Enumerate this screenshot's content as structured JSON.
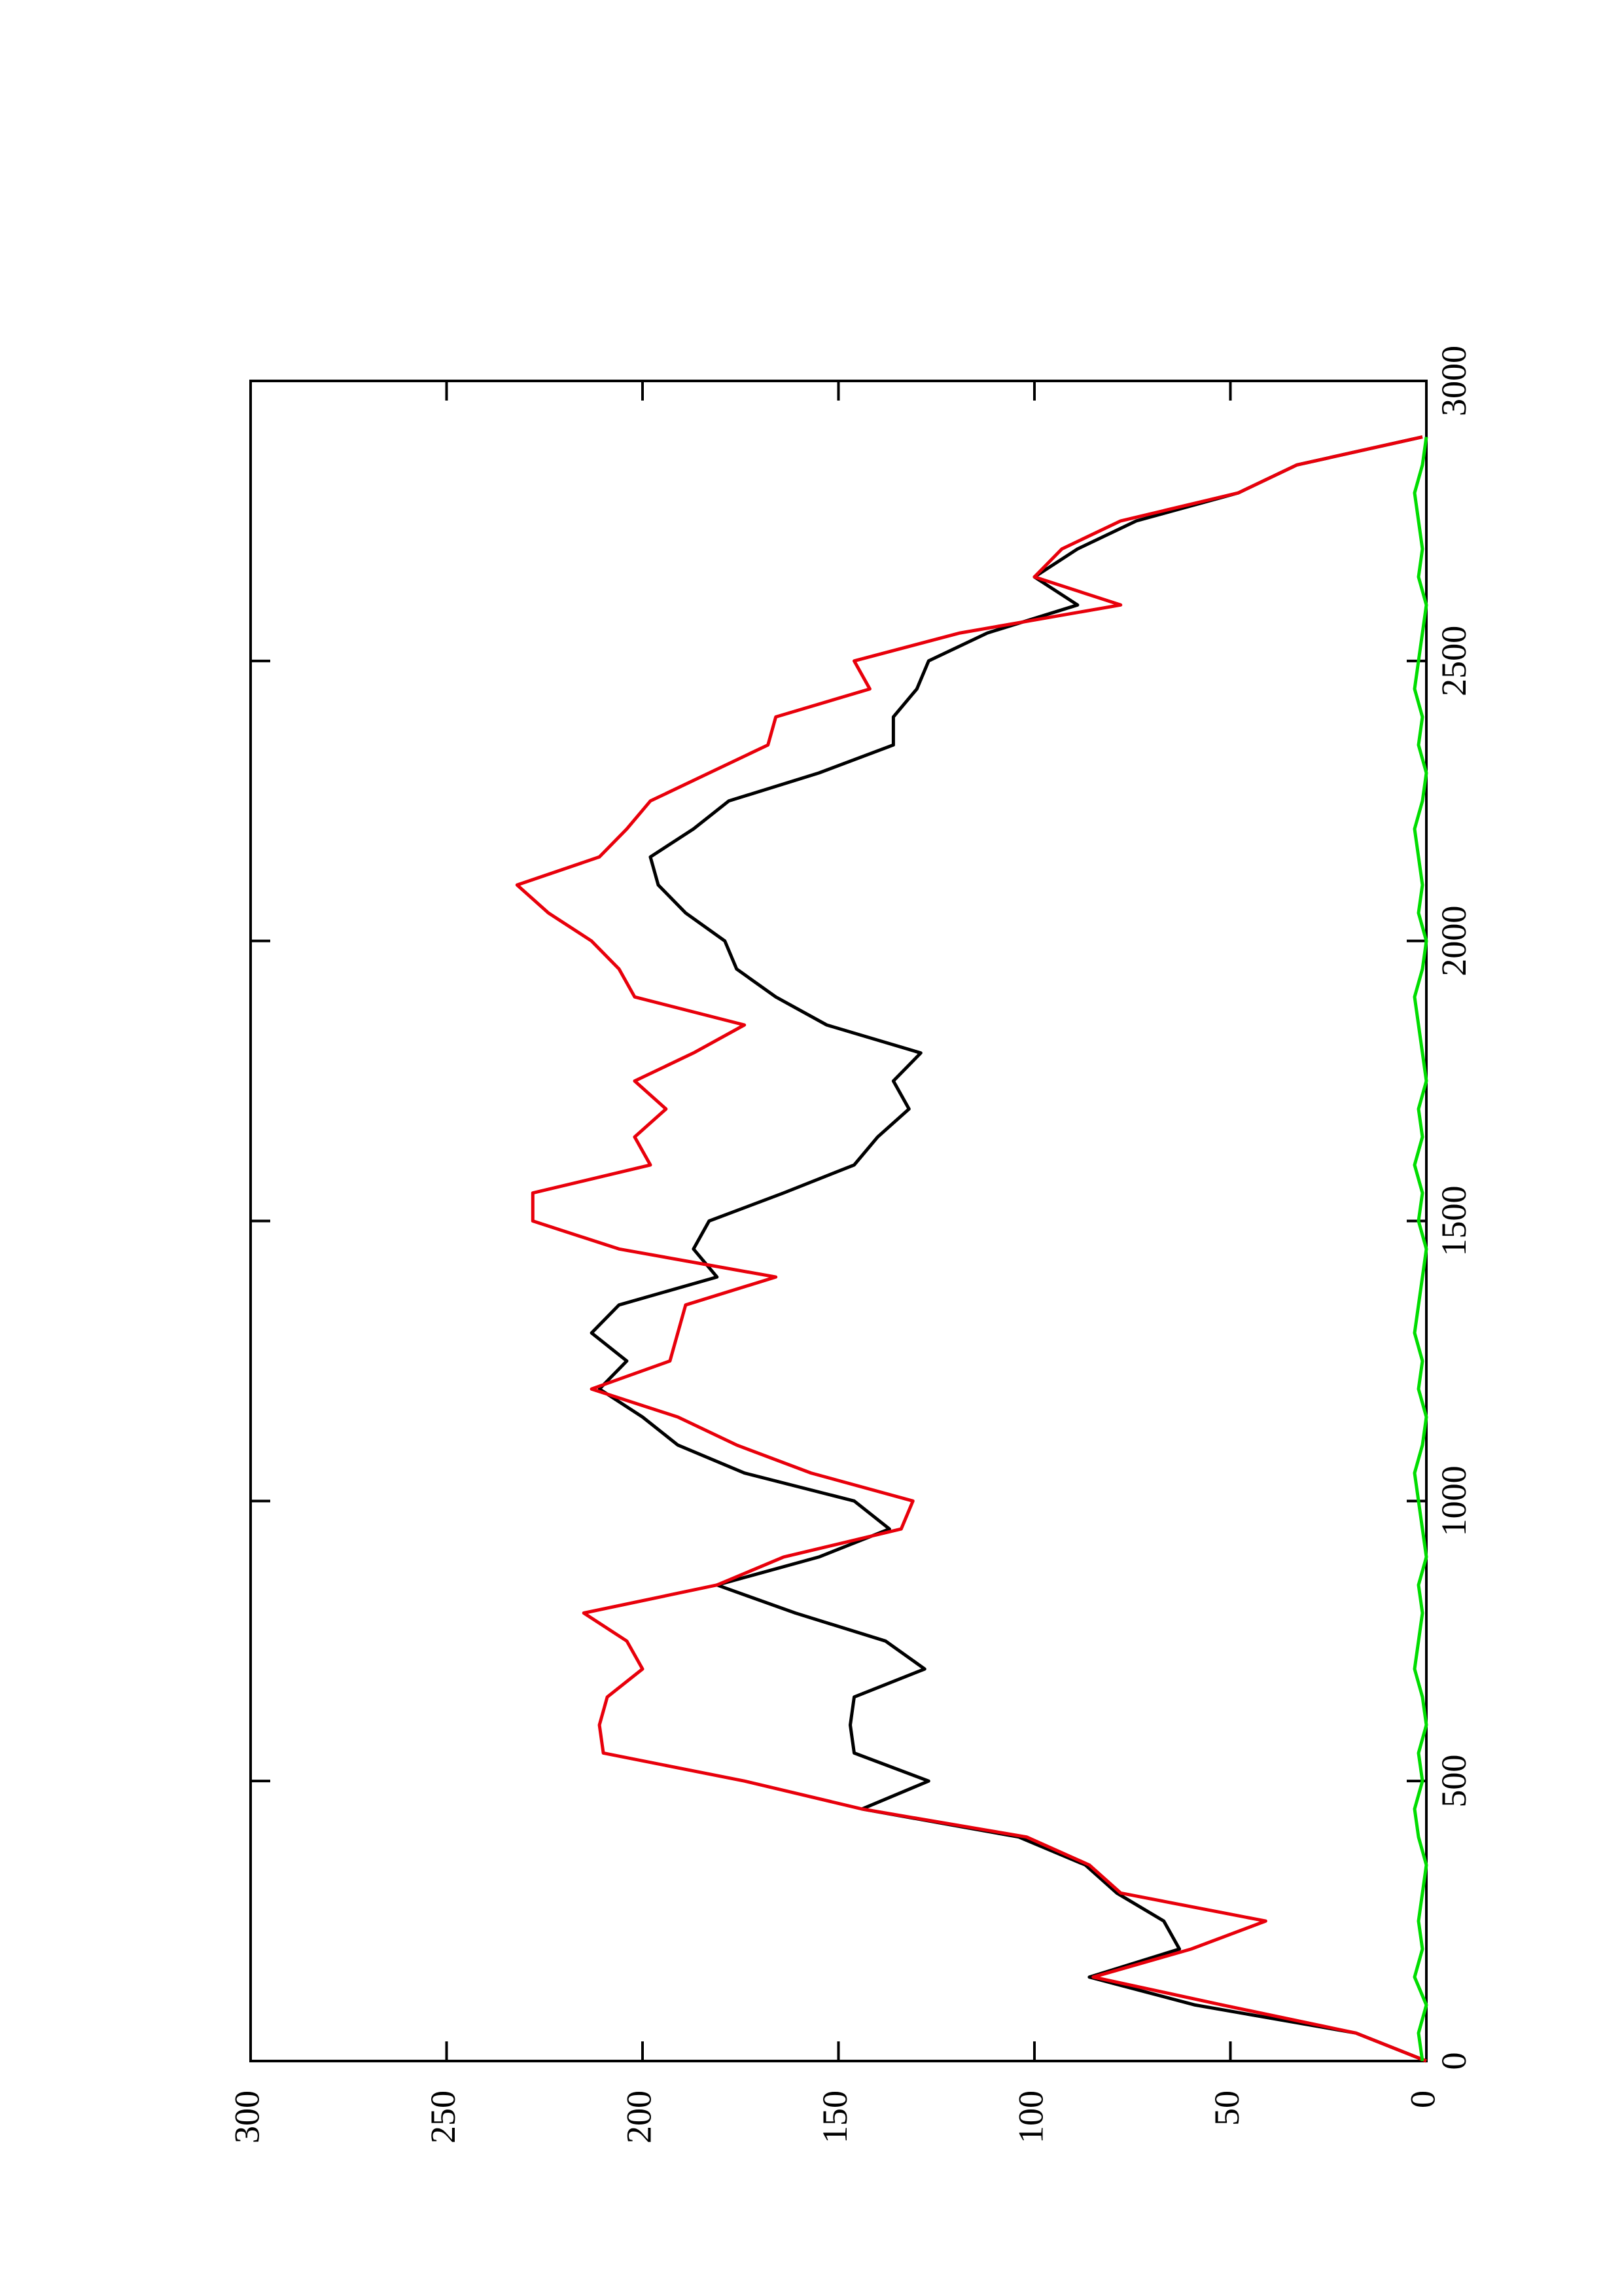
{
  "chart_data": {
    "type": "line",
    "orientation": "rotated",
    "x": [
      0,
      50,
      100,
      150,
      200,
      250,
      300,
      350,
      400,
      450,
      500,
      550,
      600,
      650,
      700,
      750,
      800,
      850,
      900,
      950,
      1000,
      1050,
      1100,
      1150,
      1200,
      1250,
      1300,
      1350,
      1400,
      1450,
      1500,
      1550,
      1600,
      1650,
      1700,
      1750,
      1800,
      1850,
      1900,
      1950,
      2000,
      2050,
      2100,
      2150,
      2200,
      2250,
      2300,
      2350,
      2400,
      2450,
      2500,
      2550,
      2600,
      2650,
      2700,
      2750,
      2800,
      2850,
      2900
    ],
    "series": [
      {
        "name": "black",
        "color": "#000000",
        "values": [
          0,
          18,
          59,
          86,
          63,
          67,
          79,
          87,
          104,
          144,
          127,
          146,
          147,
          146,
          128,
          138,
          161,
          181,
          155,
          137,
          146,
          174,
          191,
          200,
          211,
          204,
          213,
          206,
          181,
          187,
          183,
          164,
          146,
          140,
          132,
          136,
          129,
          153,
          166,
          176,
          179,
          189,
          196,
          198,
          187,
          178,
          155,
          136,
          136,
          130,
          127,
          112,
          89,
          100,
          89,
          74,
          48,
          33,
          1
        ]
      },
      {
        "name": "red",
        "color": "#e8000b",
        "values": [
          0,
          18,
          52,
          85,
          60,
          41,
          78,
          86,
          102,
          144,
          174,
          210,
          211,
          209,
          200,
          204,
          215,
          181,
          164,
          134,
          131,
          157,
          176,
          191,
          213,
          193,
          191,
          189,
          166,
          206,
          228,
          228,
          198,
          202,
          194,
          202,
          187,
          174,
          202,
          206,
          213,
          224,
          232,
          211,
          204,
          198,
          183,
          168,
          166,
          142,
          146,
          119,
          78,
          100,
          93,
          78,
          48,
          33,
          1
        ]
      },
      {
        "name": "green",
        "color": "#00dd00",
        "values": [
          1,
          2,
          0,
          3,
          1,
          2,
          1,
          0,
          2,
          3,
          1,
          2,
          0,
          1,
          3,
          2,
          1,
          2,
          0,
          1,
          2,
          3,
          1,
          0,
          2,
          1,
          3,
          2,
          1,
          0,
          2,
          1,
          3,
          1,
          2,
          0,
          1,
          2,
          3,
          1,
          0,
          2,
          1,
          2,
          3,
          1,
          0,
          2,
          1,
          3,
          2,
          1,
          0,
          2,
          1,
          2,
          3,
          1,
          0
        ]
      }
    ],
    "xlim": [
      0,
      3000
    ],
    "xticks": [
      0,
      500,
      1000,
      1500,
      2000,
      2500,
      3000
    ],
    "ylim": [
      0,
      300
    ],
    "yticks": [
      0,
      50,
      100,
      150,
      200,
      250,
      300
    ]
  }
}
